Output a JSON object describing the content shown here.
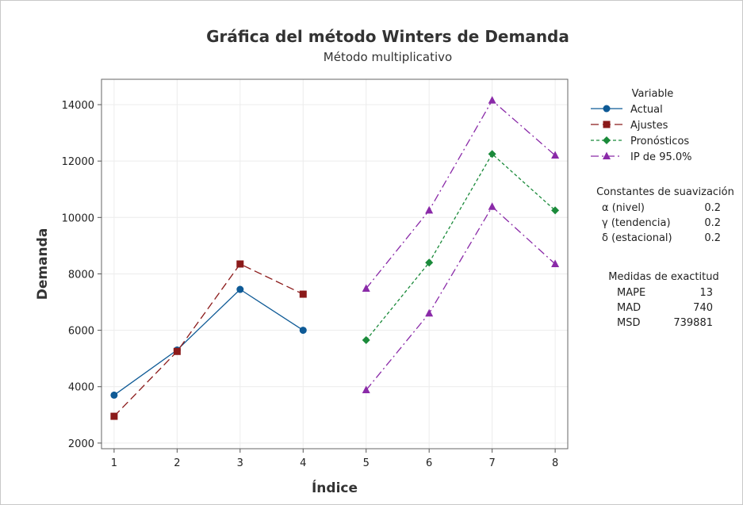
{
  "chart_data": {
    "type": "line",
    "title": "Gráfica del método Winters de Demanda",
    "subtitle": "Método multiplicativo",
    "xlabel": "Índice",
    "ylabel": "Demanda",
    "xlim": [
      0.8,
      8.2
    ],
    "ylim": [
      1800,
      14900
    ],
    "x_ticks": [
      1,
      2,
      3,
      4,
      5,
      6,
      7,
      8
    ],
    "y_ticks": [
      2000,
      4000,
      6000,
      8000,
      10000,
      12000,
      14000
    ],
    "grid": true,
    "series": [
      {
        "name": "Actual",
        "color": "#0e5a96",
        "marker": "circle",
        "dash": "solid",
        "x": [
          1,
          2,
          3,
          4
        ],
        "values": [
          3700,
          5300,
          7450,
          6000
        ]
      },
      {
        "name": "Ajustes",
        "color": "#8b1a1a",
        "marker": "square",
        "dash": "longdash",
        "x": [
          1,
          2,
          3,
          4
        ],
        "values": [
          2950,
          5250,
          8350,
          7280
        ]
      },
      {
        "name": "Pronósticos",
        "color": "#1a8a3a",
        "marker": "diamond",
        "dash": "shortdash",
        "x": [
          5,
          6,
          7,
          8
        ],
        "values": [
          5650,
          8400,
          12250,
          10250
        ]
      },
      {
        "name": "IP de 95.0%",
        "color": "#8a2aa8",
        "marker": "triangle",
        "dash": "dashdot",
        "x": [
          5,
          6,
          7,
          8
        ],
        "values": [
          7480,
          10250,
          14150,
          12200
        ]
      },
      {
        "name": "",
        "color": "#8a2aa8",
        "marker": "triangle",
        "dash": "dashdot",
        "x": [
          5,
          6,
          7,
          8
        ],
        "values": [
          3880,
          6600,
          10380,
          8350
        ]
      }
    ],
    "legend": {
      "title": "Variable",
      "placement": "right",
      "entries": [
        "Actual",
        "Ajustes",
        "Pronósticos",
        "IP de 95.0%"
      ]
    },
    "annotations": {
      "smoothing_title": "Constantes de suavización",
      "smoothing": [
        {
          "label": "α (nivel)",
          "value": "0.2"
        },
        {
          "label": "γ (tendencia)",
          "value": "0.2"
        },
        {
          "label": "δ (estacional)",
          "value": "0.2"
        }
      ],
      "accuracy_title": "Medidas de exactitud",
      "accuracy": [
        {
          "label": "MAPE",
          "value": "13"
        },
        {
          "label": "MAD",
          "value": "740"
        },
        {
          "label": "MSD",
          "value": "739881"
        }
      ]
    }
  }
}
